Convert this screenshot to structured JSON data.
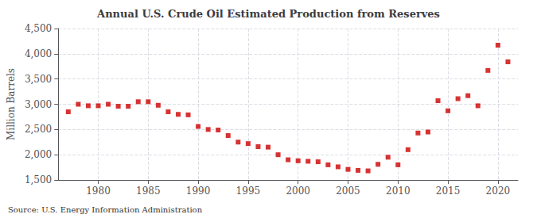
{
  "chart_data": {
    "type": "scatter",
    "title": "Annual U.S. Crude Oil Estimated Production from Reserves",
    "ylabel": "Million Barrels",
    "annotations": [
      "Source: U.S. Energy Information Administration"
    ],
    "color": "#cc0000",
    "marker": "square",
    "grid": true,
    "xlim": [
      1976,
      2022
    ],
    "xticks": [
      1980,
      1985,
      1990,
      1995,
      2000,
      2005,
      2010,
      2015,
      2020
    ],
    "ylim": [
      1500,
      4500
    ],
    "yticks": [
      {
        "value": 1500,
        "label": "1,500"
      },
      {
        "value": 2000,
        "label": "2,000"
      },
      {
        "value": 2500,
        "label": "2,500"
      },
      {
        "value": 3000,
        "label": "3,000"
      },
      {
        "value": 3500,
        "label": "3,500"
      },
      {
        "value": 4000,
        "label": "4,000"
      },
      {
        "value": 4500,
        "label": "4,500"
      }
    ],
    "x": [
      1977,
      1978,
      1979,
      1980,
      1981,
      1982,
      1983,
      1984,
      1985,
      1986,
      1987,
      1988,
      1989,
      1990,
      1991,
      1992,
      1993,
      1994,
      1995,
      1996,
      1997,
      1998,
      1999,
      2000,
      2001,
      2002,
      2003,
      2004,
      2005,
      2006,
      2007,
      2008,
      2009,
      2010,
      2011,
      2012,
      2013,
      2014,
      2015,
      2016,
      2017,
      2018,
      2019,
      2020,
      2021
    ],
    "values": [
      2850,
      3000,
      2970,
      2970,
      3000,
      2960,
      2960,
      3050,
      3050,
      2980,
      2850,
      2800,
      2790,
      2560,
      2500,
      2490,
      2380,
      2250,
      2220,
      2160,
      2150,
      2000,
      1900,
      1880,
      1870,
      1860,
      1800,
      1760,
      1710,
      1690,
      1680,
      1810,
      1950,
      1800,
      2100,
      2430,
      2450,
      3070,
      2870,
      3110,
      3170,
      2970,
      3670,
      4170,
      3840
    ]
  }
}
